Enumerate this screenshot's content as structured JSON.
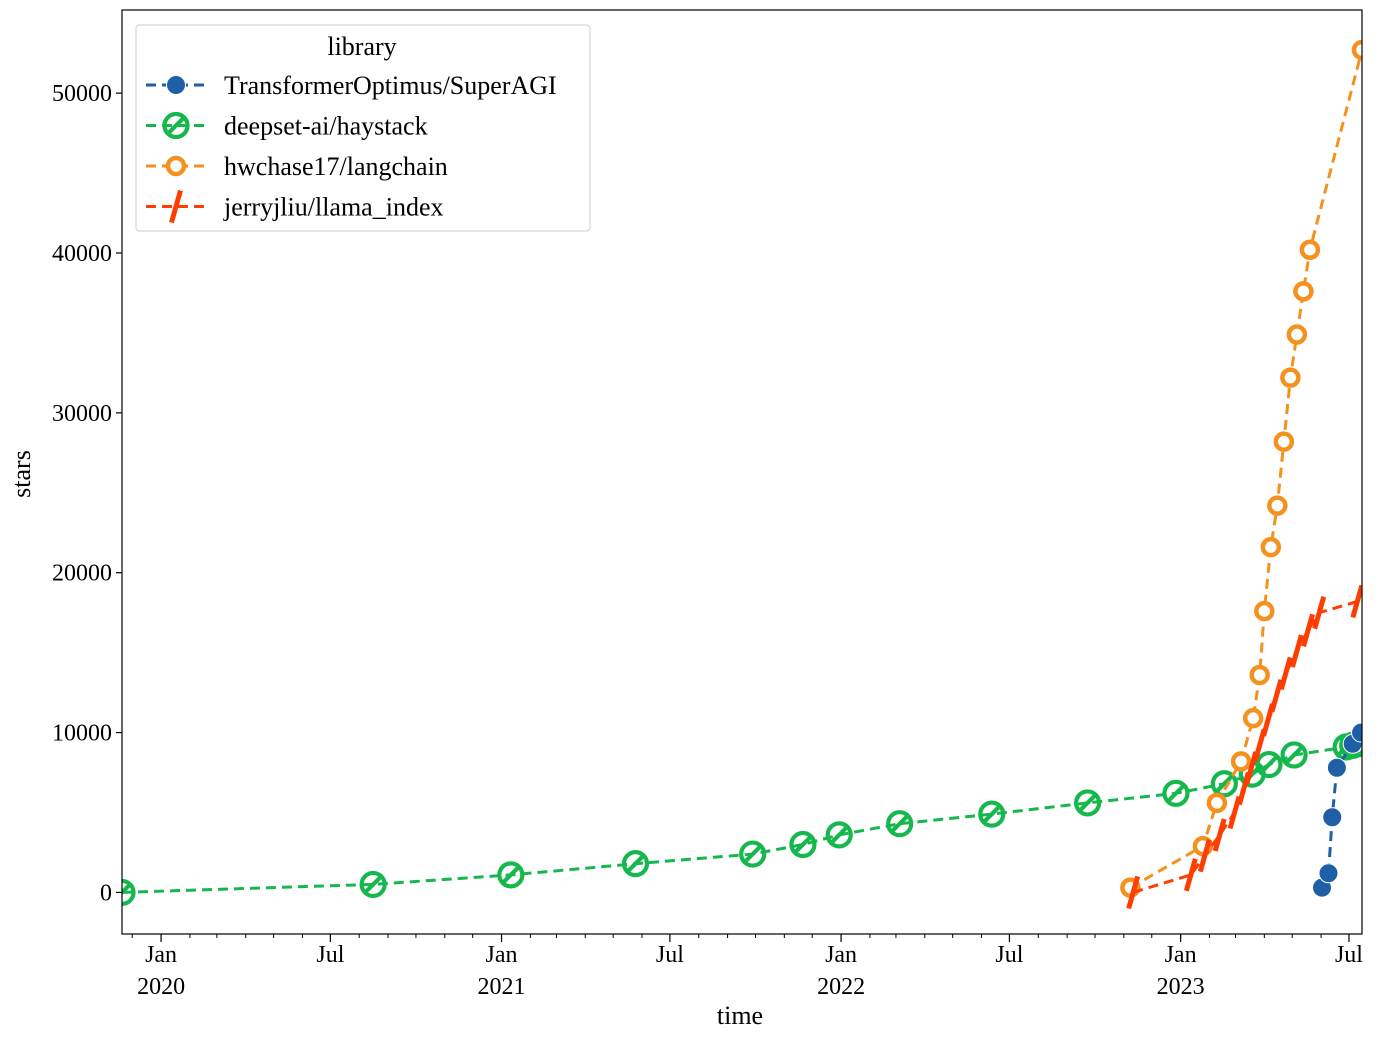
{
  "chart_data": {
    "type": "line",
    "title": "",
    "xlabel": "time",
    "ylabel": "stars",
    "xlim": [
      "2019-11-20",
      "2023-07-15"
    ],
    "ylim": [
      -2600,
      55200
    ],
    "yticks": [
      0,
      10000,
      20000,
      30000,
      40000,
      50000
    ],
    "xticks": [
      {
        "date": "2020-01-01",
        "label": "Jan",
        "year": "2020"
      },
      {
        "date": "2020-07-01",
        "label": "Jul",
        "year": ""
      },
      {
        "date": "2021-01-01",
        "label": "Jan",
        "year": "2021"
      },
      {
        "date": "2021-07-01",
        "label": "Jul",
        "year": ""
      },
      {
        "date": "2022-01-01",
        "label": "Jan",
        "year": "2022"
      },
      {
        "date": "2022-07-01",
        "label": "Jul",
        "year": ""
      },
      {
        "date": "2023-01-01",
        "label": "Jan",
        "year": "2023"
      },
      {
        "date": "2023-07-01",
        "label": "Jul",
        "year": ""
      }
    ],
    "legend": {
      "title": "library",
      "placement": "top-left"
    },
    "series": [
      {
        "name": "TransformerOptimus/SuperAGI",
        "color": "#1f5fa6",
        "marker": "filled-circle",
        "line": "dashed",
        "points": [
          [
            "2023-06-02",
            300
          ],
          [
            "2023-06-09",
            1200
          ],
          [
            "2023-06-13",
            4700
          ],
          [
            "2023-06-18",
            7800
          ],
          [
            "2023-07-05",
            9300
          ],
          [
            "2023-07-14",
            10000
          ]
        ]
      },
      {
        "name": "deepset-ai/haystack",
        "color": "#16b84e",
        "marker": "hatched-circle",
        "line": "dashed",
        "points": [
          [
            "2019-11-20",
            0
          ],
          [
            "2020-08-16",
            500
          ],
          [
            "2021-01-11",
            1100
          ],
          [
            "2021-05-25",
            1800
          ],
          [
            "2021-09-28",
            2400
          ],
          [
            "2021-11-21",
            3000
          ],
          [
            "2021-12-30",
            3600
          ],
          [
            "2022-03-05",
            4300
          ],
          [
            "2022-06-12",
            4900
          ],
          [
            "2022-09-23",
            5600
          ],
          [
            "2022-12-27",
            6200
          ],
          [
            "2023-02-17",
            6800
          ],
          [
            "2023-03-19",
            7400
          ],
          [
            "2023-04-06",
            8000
          ],
          [
            "2023-05-03",
            8600
          ],
          [
            "2023-06-28",
            9100
          ],
          [
            "2023-07-05",
            9200
          ],
          [
            "2023-07-10",
            9300
          ]
        ]
      },
      {
        "name": "hwchase17/langchain",
        "color": "#f5911e",
        "marker": "open-circle",
        "line": "dashed",
        "points": [
          [
            "2022-11-08",
            300
          ],
          [
            "2023-01-25",
            2900
          ],
          [
            "2023-02-09",
            5600
          ],
          [
            "2023-03-07",
            8200
          ],
          [
            "2023-03-20",
            10900
          ],
          [
            "2023-03-27",
            13600
          ],
          [
            "2023-04-01",
            17600
          ],
          [
            "2023-04-08",
            21600
          ],
          [
            "2023-04-15",
            24200
          ],
          [
            "2023-04-22",
            28200
          ],
          [
            "2023-04-29",
            32200
          ],
          [
            "2023-05-06",
            34900
          ],
          [
            "2023-05-13",
            37600
          ],
          [
            "2023-05-20",
            40200
          ],
          [
            "2023-07-15",
            52700
          ]
        ]
      },
      {
        "name": "jerryjliu/llama_index",
        "color": "#ff3d00",
        "marker": "slash",
        "line": "dashed",
        "points": [
          [
            "2022-11-11",
            0
          ],
          [
            "2023-01-12",
            1100
          ],
          [
            "2023-01-27",
            2300
          ],
          [
            "2023-02-12",
            3600
          ],
          [
            "2023-02-28",
            5000
          ],
          [
            "2023-03-10",
            6500
          ],
          [
            "2023-03-18",
            7800
          ],
          [
            "2023-03-27",
            9200
          ],
          [
            "2023-04-05",
            10800
          ],
          [
            "2023-04-14",
            12300
          ],
          [
            "2023-04-24",
            13700
          ],
          [
            "2023-05-06",
            15100
          ],
          [
            "2023-05-18",
            16400
          ],
          [
            "2023-05-30",
            17500
          ],
          [
            "2023-07-10",
            18200
          ]
        ]
      }
    ]
  }
}
